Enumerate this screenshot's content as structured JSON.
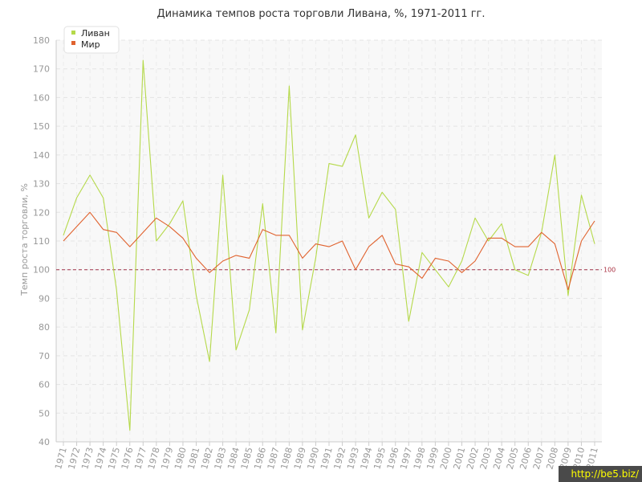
{
  "chart_data": {
    "type": "line",
    "title": "Динамика темпов роста торговли Ливана, %, 1971-2011 гг.",
    "ylabel": "Темп роста торговли, %",
    "xlabel": "",
    "ylim": [
      40,
      180
    ],
    "yticks": [
      40,
      50,
      60,
      70,
      80,
      90,
      100,
      110,
      120,
      130,
      140,
      150,
      160,
      170,
      180
    ],
    "categories": [
      "1971",
      "1972",
      "1973",
      "1974",
      "1975",
      "1976",
      "1977",
      "1978",
      "1979",
      "1980",
      "1981",
      "1982",
      "1983",
      "1984",
      "1985",
      "1986",
      "1987",
      "1988",
      "1989",
      "1990",
      "1991",
      "1992",
      "1993",
      "1994",
      "1995",
      "1996",
      "1997",
      "1998",
      "1999",
      "2000",
      "2001",
      "2002",
      "2003",
      "2004",
      "2005",
      "2006",
      "2007",
      "2008",
      "2009",
      "2010",
      "2011"
    ],
    "grid": true,
    "legend_position": "top-left",
    "series": [
      {
        "name": "Ливан",
        "color": "#b5d94a",
        "values": [
          112,
          125,
          133,
          125,
          93,
          44,
          173,
          110,
          116,
          124,
          91,
          68,
          133,
          72,
          86,
          123,
          78,
          164,
          79,
          104,
          137,
          136,
          147,
          118,
          127,
          121,
          82,
          106,
          100,
          94,
          103,
          118,
          110,
          116,
          100,
          98,
          113,
          140,
          91,
          126,
          109
        ]
      },
      {
        "name": "Мир",
        "color": "#e0622e",
        "values": [
          110,
          115,
          120,
          114,
          113,
          108,
          113,
          118,
          115,
          111,
          104,
          99,
          103,
          105,
          104,
          114,
          112,
          112,
          104,
          109,
          108,
          110,
          100,
          108,
          112,
          102,
          101,
          97,
          104,
          103,
          99,
          103,
          111,
          111,
          108,
          108,
          113,
          109,
          93,
          110,
          117
        ]
      }
    ],
    "reference_line": {
      "value": 100,
      "label": "100",
      "color": "#a0334a"
    }
  },
  "watermark": "http://be5.biz/"
}
